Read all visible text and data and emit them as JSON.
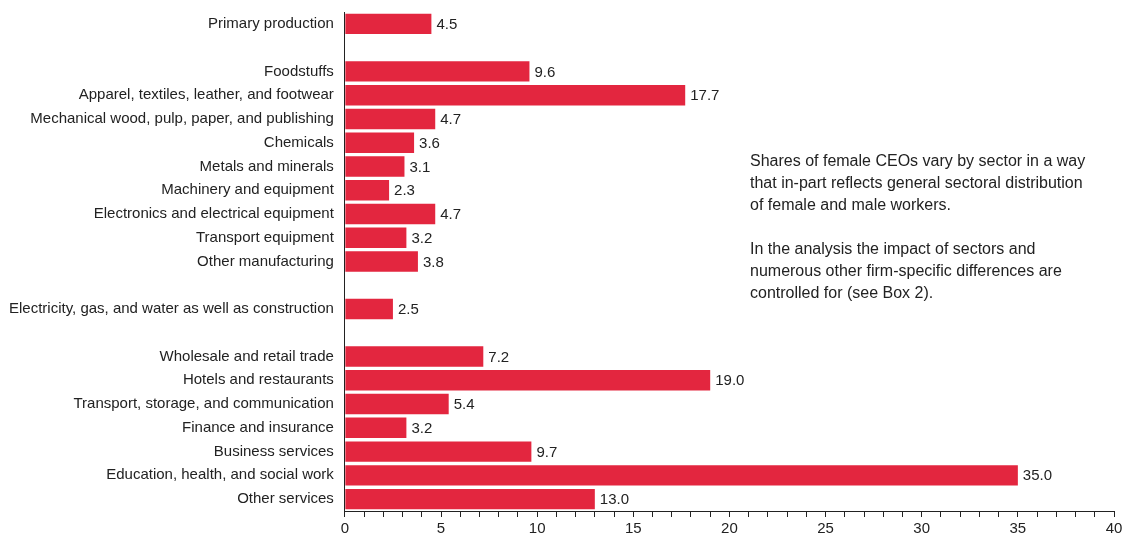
{
  "chart_data": {
    "type": "bar",
    "orientation": "horizontal",
    "categories": [
      "Primary production",
      null,
      "Foodstuffs",
      "Apparel, textiles, leather, and footwear",
      "Mechanical wood, pulp, paper, and publishing",
      "Chemicals",
      "Metals and minerals",
      "Machinery and equipment",
      "Electronics and electrical equipment",
      "Transport equipment",
      "Other manufacturing",
      null,
      "Electricity, gas, and water as well as construction",
      null,
      "Wholesale and retail trade",
      "Hotels and restaurants",
      "Transport, storage, and communication",
      "Finance and insurance",
      "Business services",
      "Education, health, and social work",
      "Other services"
    ],
    "values": [
      4.5,
      null,
      9.6,
      17.7,
      4.7,
      3.6,
      3.1,
      2.3,
      4.7,
      3.2,
      3.8,
      null,
      2.5,
      null,
      7.2,
      19.0,
      5.4,
      3.2,
      9.7,
      35.0,
      13.0
    ],
    "value_labels": [
      "4.5",
      null,
      "9.6",
      "17.7",
      "4.7",
      "3.6",
      "3.1",
      "2.3",
      "4.7",
      "3.2",
      "3.8",
      null,
      "2.5",
      null,
      "7.2",
      "19.0",
      "5.4",
      "3.2",
      "9.7",
      "35.0",
      "13.0"
    ],
    "color": "#e3263f",
    "xlim": [
      0,
      40
    ],
    "xticks": [
      0,
      {
        "value": 1,
        "label": null
      },
      {
        "value": 2,
        "label": null
      },
      {
        "value": 3,
        "label": null
      },
      {
        "value": 4,
        "label": null
      },
      5,
      {
        "value": 6,
        "label": null
      },
      {
        "value": 7,
        "label": null
      },
      {
        "value": 8,
        "label": null
      },
      {
        "value": 9,
        "label": null
      },
      10,
      {
        "value": 11,
        "label": null
      },
      {
        "value": 12,
        "label": null
      },
      {
        "value": 13,
        "label": null
      },
      {
        "value": 14,
        "label": null
      },
      15,
      {
        "value": 16,
        "label": null
      },
      {
        "value": 17,
        "label": null
      },
      {
        "value": 18,
        "label": null
      },
      {
        "value": 19,
        "label": null
      },
      20,
      {
        "value": 21,
        "label": null
      },
      {
        "value": 22,
        "label": null
      },
      {
        "value": 23,
        "label": null
      },
      {
        "value": 24,
        "label": null
      },
      25,
      {
        "value": 26,
        "label": null
      },
      {
        "value": 27,
        "label": null
      },
      {
        "value": 28,
        "label": null
      },
      {
        "value": 29,
        "label": null
      },
      30,
      {
        "value": 31,
        "label": null
      },
      {
        "value": 32,
        "label": null
      },
      {
        "value": 33,
        "label": null
      },
      {
        "value": 34,
        "label": null
      },
      35,
      {
        "value": 36,
        "label": null
      },
      {
        "value": 37,
        "label": null
      },
      {
        "value": 38,
        "label": null
      },
      {
        "value": 39,
        "label": null
      },
      40
    ],
    "grid": false,
    "legend": false,
    "annotations": [
      "Shares of female  CEOs vary by sector in a way that in-part reflects general sectoral distribution of female and male workers.",
      "In the analysis the impact of sectors and numerous other firm-specific differences are controlled for (see Box 2)."
    ]
  }
}
